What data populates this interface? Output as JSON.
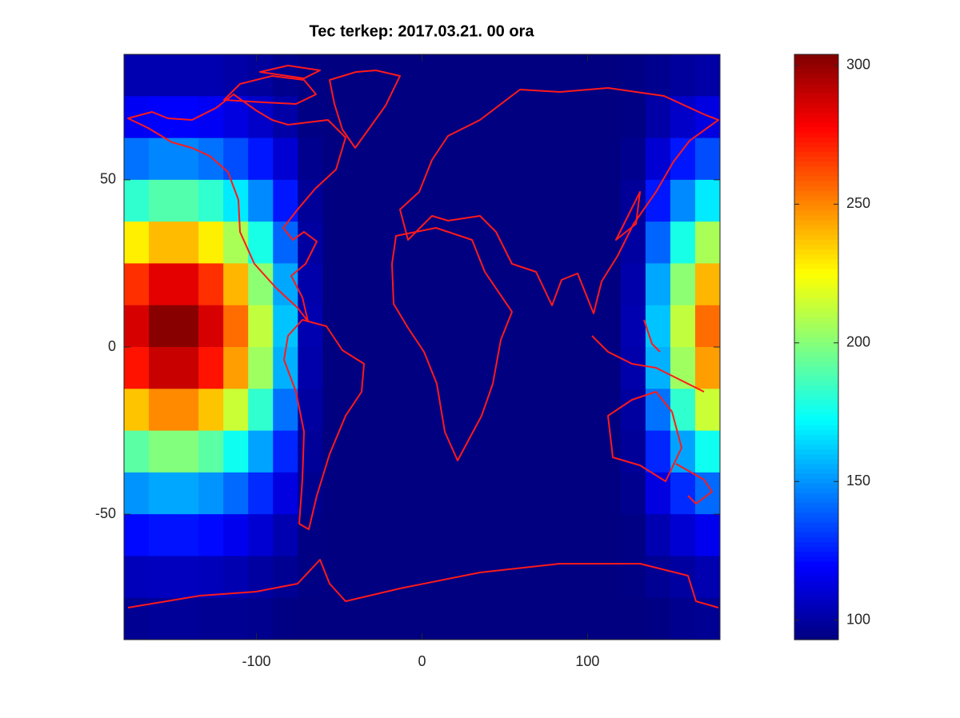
{
  "chart_data": {
    "type": "heatmap",
    "title": "Tec terkep: 2017.03.21. 00 ora",
    "colormap": "jet",
    "x": [
      -172.5,
      -157.5,
      -142.5,
      -127.5,
      -112.5,
      -97.5,
      -82.5,
      -67.5,
      -52.5,
      -37.5,
      -22.5,
      -7.5,
      7.5,
      22.5,
      37.5,
      52.5,
      67.5,
      82.5,
      97.5,
      112.5,
      127.5,
      142.5,
      157.5,
      172.5
    ],
    "y": [
      81.25,
      68.75,
      56.25,
      43.75,
      31.25,
      18.75,
      6.25,
      -6.25,
      -18.75,
      -31.25,
      -43.75,
      -56.25,
      -68.75,
      -81.25
    ],
    "values": [
      [
        103,
        103,
        103,
        103,
        101,
        99,
        96,
        94,
        93,
        93,
        93,
        93,
        93,
        93,
        93,
        93,
        93,
        93,
        93,
        93,
        94,
        96,
        99,
        101
      ],
      [
        117,
        119,
        119,
        117,
        113,
        108,
        101,
        94,
        93,
        93,
        93,
        93,
        93,
        93,
        93,
        93,
        93,
        93,
        93,
        93,
        94,
        101,
        108,
        113
      ],
      [
        143,
        147,
        147,
        143,
        135,
        124,
        110,
        96,
        93,
        93,
        93,
        93,
        93,
        93,
        93,
        93,
        93,
        93,
        93,
        93,
        96,
        110,
        124,
        135
      ],
      [
        182,
        189,
        189,
        182,
        168,
        148,
        124,
        98,
        93,
        93,
        93,
        93,
        93,
        93,
        93,
        93,
        93,
        93,
        93,
        93,
        98,
        124,
        148,
        168
      ],
      [
        228,
        239,
        239,
        228,
        207,
        177,
        140,
        100,
        93,
        93,
        93,
        93,
        93,
        93,
        93,
        93,
        93,
        93,
        93,
        93,
        100,
        140,
        177,
        207
      ],
      [
        268,
        283,
        283,
        268,
        240,
        201,
        154,
        102,
        93,
        93,
        93,
        93,
        93,
        93,
        93,
        93,
        93,
        93,
        93,
        93,
        102,
        154,
        201,
        240
      ],
      [
        286,
        302,
        302,
        286,
        255,
        212,
        160,
        103,
        93,
        93,
        93,
        93,
        93,
        93,
        93,
        93,
        93,
        93,
        93,
        93,
        103,
        160,
        212,
        255
      ],
      [
        274,
        289,
        289,
        274,
        245,
        205,
        156,
        102,
        93,
        93,
        93,
        93,
        93,
        93,
        93,
        93,
        93,
        93,
        93,
        93,
        102,
        156,
        205,
        245
      ],
      [
        237,
        249,
        249,
        237,
        214,
        182,
        143,
        100,
        93,
        93,
        93,
        93,
        93,
        93,
        93,
        93,
        93,
        93,
        93,
        93,
        100,
        143,
        182,
        214
      ],
      [
        191,
        199,
        199,
        191,
        175,
        153,
        127,
        98,
        93,
        93,
        93,
        93,
        93,
        93,
        93,
        93,
        93,
        93,
        93,
        93,
        98,
        127,
        153,
        175
      ],
      [
        150,
        154,
        154,
        150,
        141,
        128,
        113,
        96,
        93,
        93,
        93,
        93,
        93,
        93,
        93,
        93,
        93,
        93,
        93,
        93,
        96,
        113,
        128,
        141
      ],
      [
        121,
        123,
        123,
        121,
        116,
        110,
        103,
        94,
        93,
        93,
        93,
        93,
        93,
        93,
        93,
        93,
        93,
        93,
        93,
        93,
        94,
        103,
        110,
        116
      ],
      [
        105,
        106,
        106,
        105,
        103,
        100,
        97,
        94,
        93,
        93,
        93,
        93,
        93,
        93,
        93,
        93,
        93,
        93,
        93,
        93,
        94,
        97,
        100,
        103
      ],
      [
        97,
        98,
        98,
        97,
        97,
        96,
        94,
        93,
        93,
        93,
        93,
        93,
        93,
        93,
        93,
        93,
        93,
        93,
        93,
        93,
        93,
        94,
        96,
        97
      ]
    ],
    "xlim": [
      -180,
      180
    ],
    "ylim": [
      -87.5,
      87.5
    ],
    "xticks": [
      -100,
      0,
      100
    ],
    "yticks": [
      -50,
      0,
      50
    ],
    "clim": [
      93,
      304
    ],
    "cticks": [
      100,
      150,
      200,
      250,
      300
    ]
  }
}
